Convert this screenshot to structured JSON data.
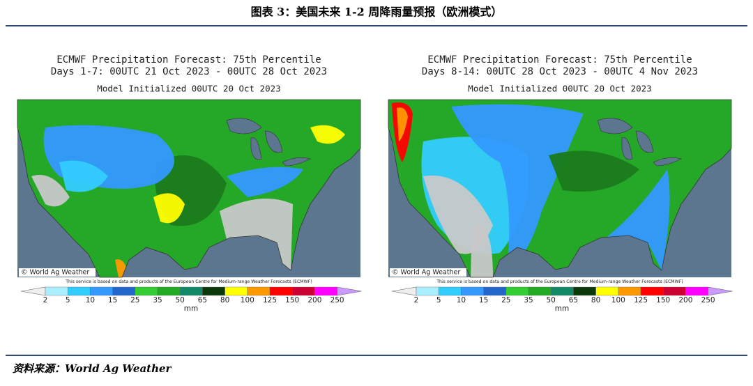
{
  "header": {
    "title": "图表 3：美国未来 1-2 周降雨量预报（欧洲模式）"
  },
  "maps": [
    {
      "title": "ECMWF Precipitation Forecast: 75th Percentile",
      "period": "Days 1-7: 00UTC 21 Oct 2023 - 00UTC 28 Oct 2023",
      "initialized": "Model Initialized 00UTC 20 Oct 2023",
      "watermark": "© World Ag Weather"
    },
    {
      "title": "ECMWF Precipitation Forecast: 75th Percentile",
      "period": "Days 8-14: 00UTC 28 Oct 2023 - 00UTC 4 Nov 2023",
      "initialized": "Model Initialized 00UTC 20 Oct 2023",
      "watermark": "© World Ag Weather"
    }
  ],
  "note": "This service is based on data and products of the European Centre for Medium-range Weather Forecasts (ECMWF)",
  "legend": {
    "labels": [
      2,
      5,
      10,
      15,
      25,
      35,
      50,
      65,
      80,
      100,
      125,
      150,
      200,
      250
    ],
    "unit": "mm"
  },
  "source": "资料来源：World Ag Weather"
}
